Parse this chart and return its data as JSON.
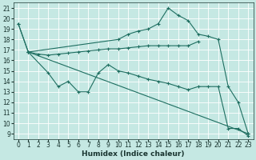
{
  "xlabel": "Humidex (Indice chaleur)",
  "xlim": [
    -0.5,
    23.5
  ],
  "ylim": [
    8.5,
    21.5
  ],
  "yticks": [
    9,
    10,
    11,
    12,
    13,
    14,
    15,
    16,
    17,
    18,
    19,
    20,
    21
  ],
  "xticks": [
    0,
    1,
    2,
    3,
    4,
    5,
    6,
    7,
    8,
    9,
    10,
    11,
    12,
    13,
    14,
    15,
    16,
    17,
    18,
    19,
    20,
    21,
    22,
    23
  ],
  "series": [
    {
      "x": [
        0,
        1,
        2,
        3,
        4,
        5,
        6,
        7,
        8,
        9,
        10,
        11,
        12,
        13,
        14,
        15,
        16,
        17,
        18
      ],
      "y": [
        19.5,
        16.8,
        16.6,
        16.5,
        16.6,
        16.7,
        16.8,
        16.9,
        17.0,
        17.1,
        17.1,
        17.2,
        17.3,
        17.4,
        17.4,
        17.4,
        17.4,
        17.4,
        17.8
      ]
    },
    {
      "x": [
        0,
        1,
        10,
        11,
        12,
        13,
        14,
        15,
        16,
        17,
        18,
        19,
        20,
        21,
        22,
        23
      ],
      "y": [
        19.5,
        16.8,
        18.0,
        18.5,
        18.8,
        19.0,
        19.5,
        21.0,
        20.3,
        19.8,
        18.5,
        18.3,
        18.0,
        13.5,
        12.0,
        9.0
      ]
    },
    {
      "x": [
        1,
        3,
        4,
        5,
        6,
        7,
        8,
        9,
        10,
        11,
        12,
        13,
        14,
        15,
        16,
        17,
        18,
        19,
        20,
        21,
        22,
        23
      ],
      "y": [
        16.8,
        14.8,
        13.5,
        14.0,
        13.0,
        13.0,
        14.8,
        15.6,
        15.0,
        14.8,
        14.5,
        14.2,
        14.0,
        13.8,
        13.5,
        13.2,
        13.5,
        13.5,
        13.5,
        9.5,
        9.5,
        8.8
      ]
    },
    {
      "x": [
        1,
        23
      ],
      "y": [
        16.8,
        9.0
      ]
    }
  ],
  "bg_color": "#c5e8e3",
  "grid_color": "#b0d8d2",
  "line_color": "#1e6e60",
  "font_color": "#1a3530",
  "axis_fontsize": 6.5,
  "tick_fontsize": 5.5
}
